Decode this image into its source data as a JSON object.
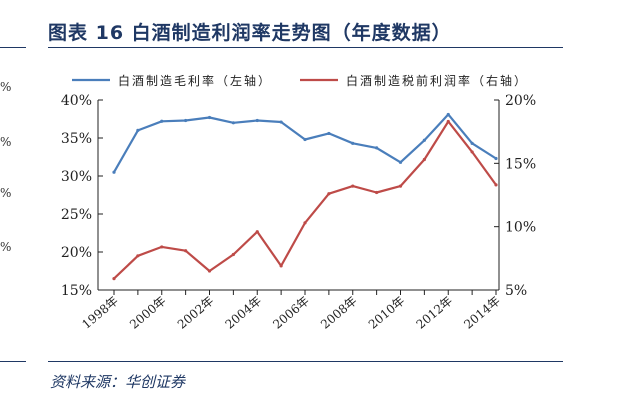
{
  "header": {
    "title": "图表 16 白酒制造利润率走势图（年度数据）"
  },
  "footer": {
    "source": "资料来源：华创证券"
  },
  "left_edge": {
    "tick_fragments": [
      "%",
      "%",
      "%",
      "%"
    ]
  },
  "chart_data": {
    "type": "line",
    "legend_position": "top",
    "grid": false,
    "x": [
      "1998年",
      "1999年",
      "2000年",
      "2001年",
      "2002年",
      "2003年",
      "2004年",
      "2005年",
      "2006年",
      "2007年",
      "2008年",
      "2009年",
      "2010年",
      "2011年",
      "2012年",
      "2013年",
      "2014年"
    ],
    "x_tick_labels": [
      "1998年",
      "2000年",
      "2002年",
      "2004年",
      "2006年",
      "2008年",
      "2010年",
      "2012年",
      "2014年"
    ],
    "y_left": {
      "range": [
        15,
        40
      ],
      "ticks": [
        "15%",
        "20%",
        "25%",
        "30%",
        "35%",
        "40%"
      ]
    },
    "y_right": {
      "range": [
        5,
        20
      ],
      "ticks": [
        "5%",
        "10%",
        "15%",
        "20%"
      ]
    },
    "series": [
      {
        "name": "白酒制造毛利率（左轴）",
        "axis": "left",
        "color": "#4a7ebb",
        "values": [
          30.5,
          36.0,
          37.2,
          37.3,
          37.7,
          37.0,
          37.3,
          37.1,
          34.8,
          35.6,
          34.3,
          33.7,
          31.8,
          34.7,
          38.1,
          34.3,
          32.3
        ]
      },
      {
        "name": "白酒制造税前利润率（右轴）",
        "axis": "right",
        "color": "#be4b48",
        "values": [
          5.9,
          7.7,
          8.4,
          8.1,
          6.5,
          7.8,
          9.6,
          6.9,
          10.3,
          12.6,
          13.2,
          12.7,
          13.2,
          15.3,
          18.3,
          15.9,
          13.3
        ]
      }
    ]
  }
}
